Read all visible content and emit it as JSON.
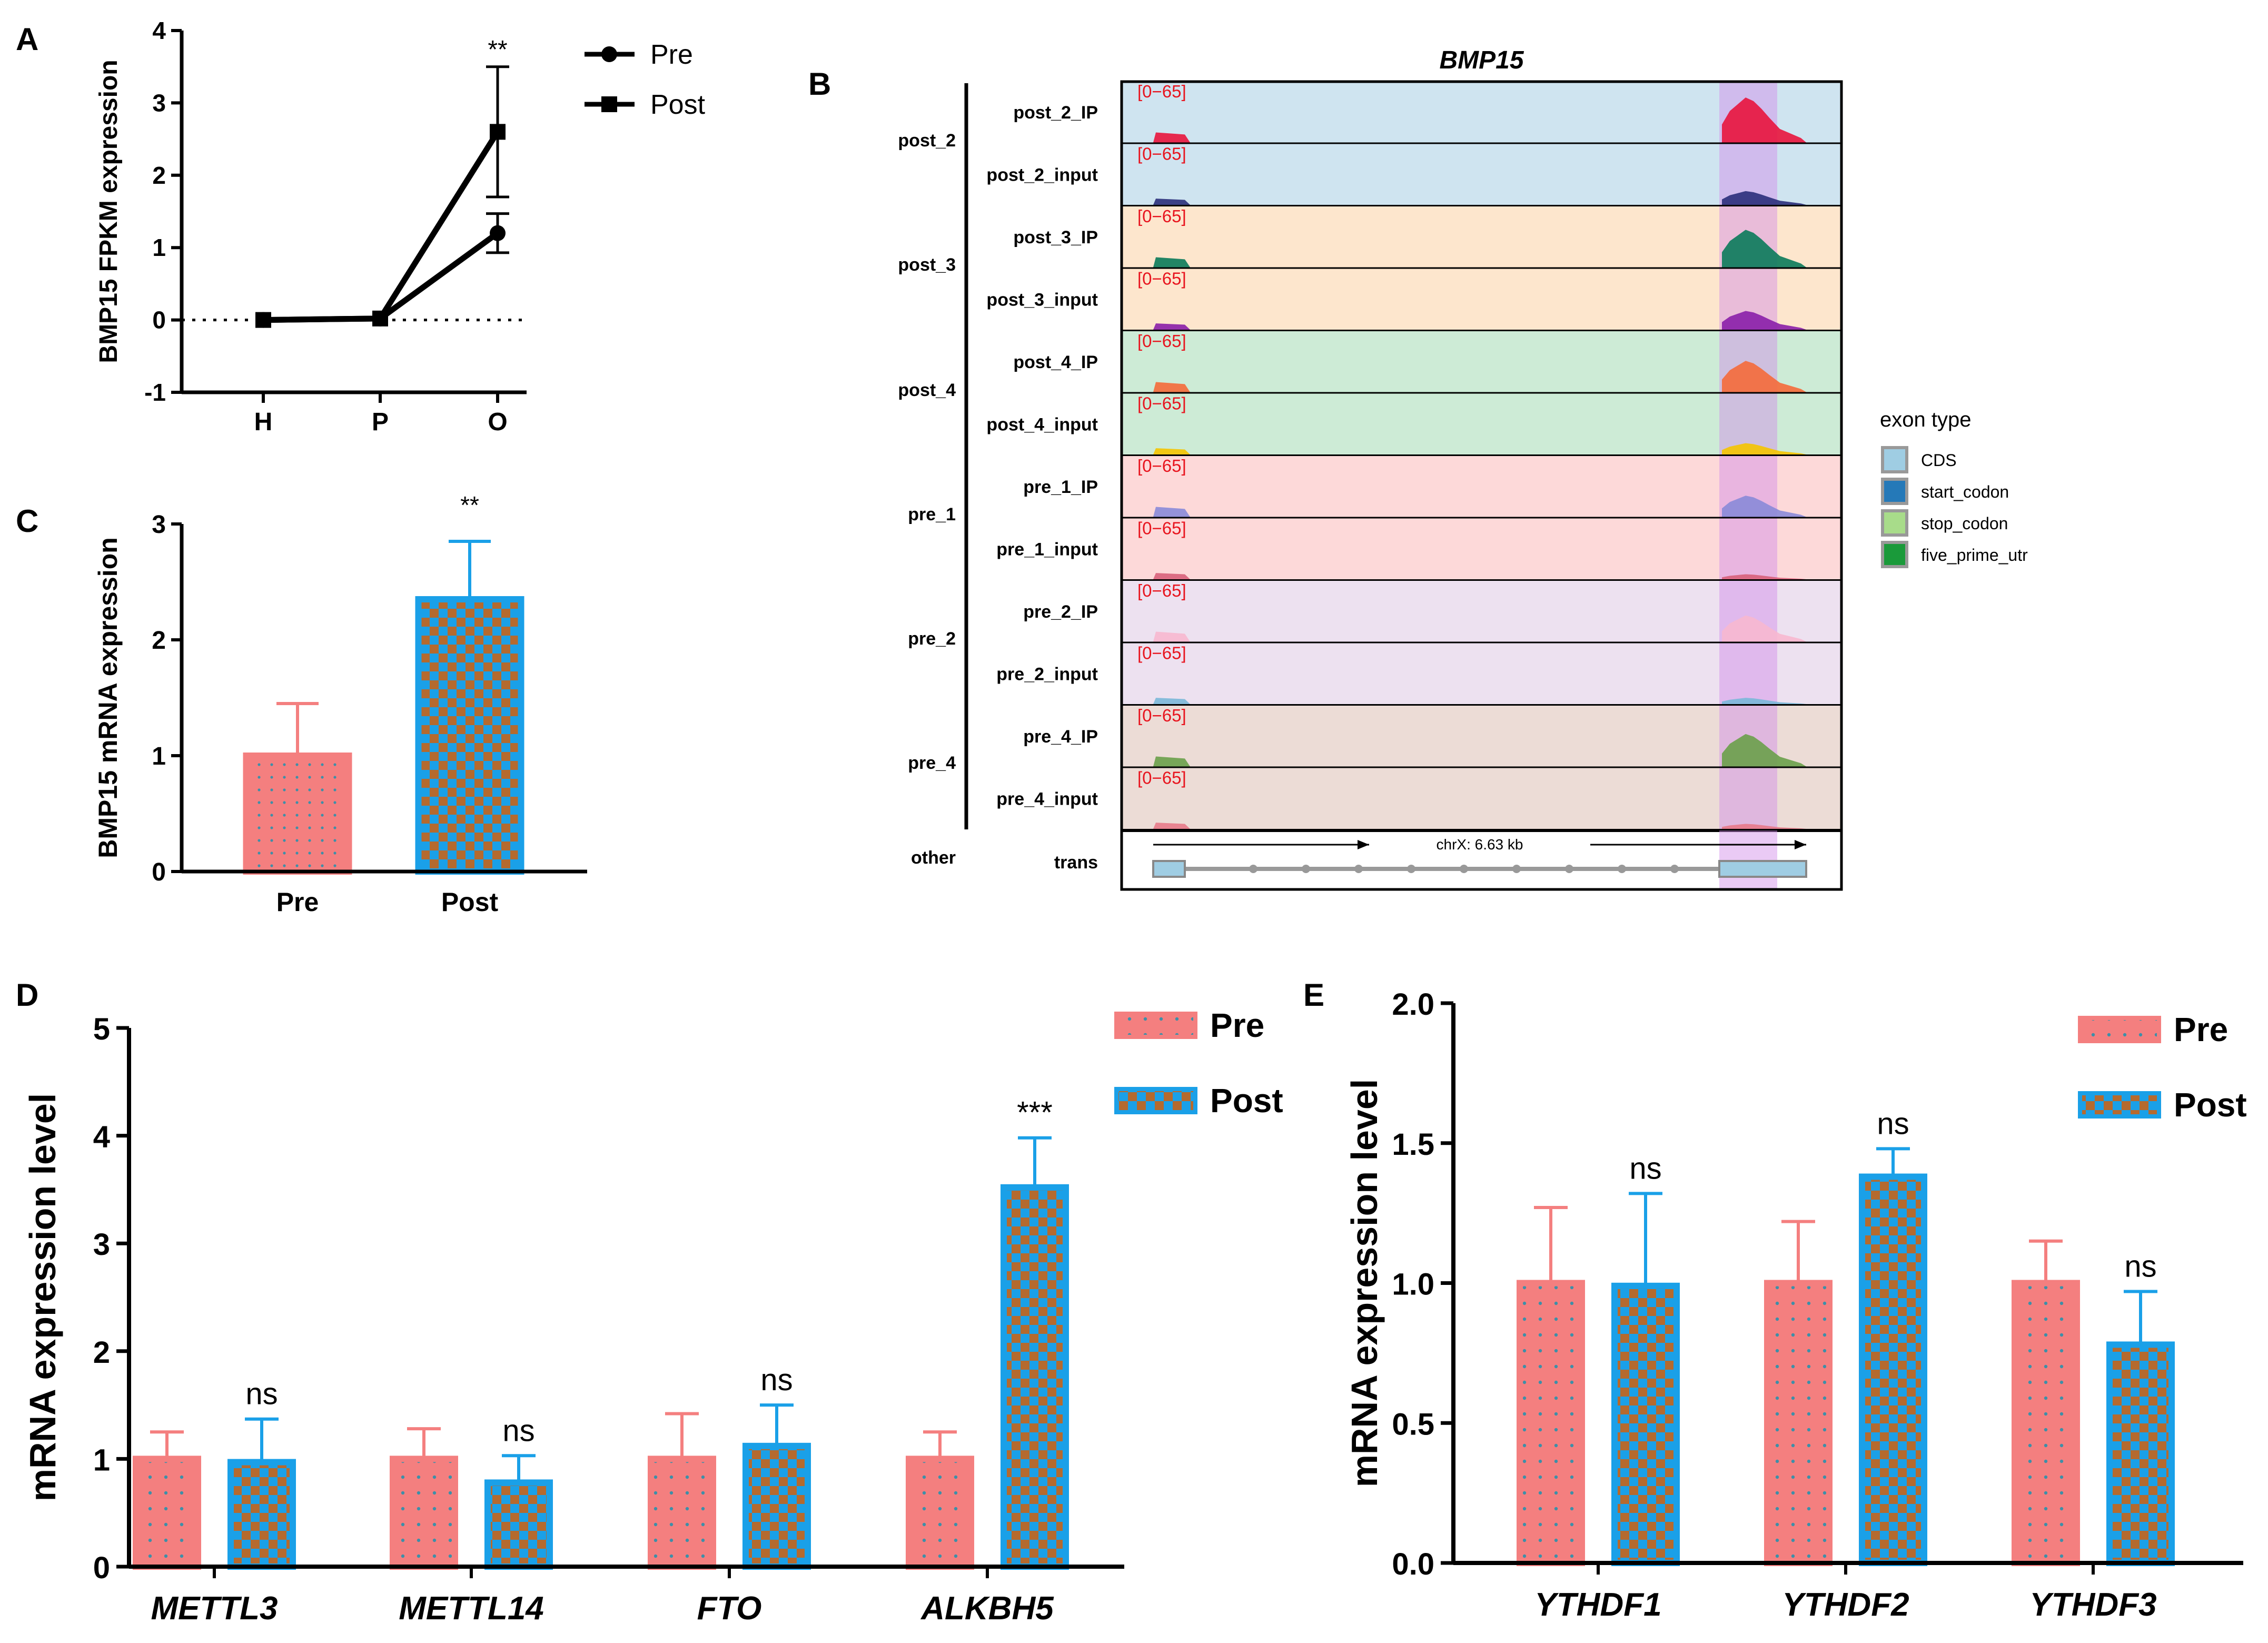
{
  "colors": {
    "pre": "#f47f7f",
    "pre_dot": "#3d8fa8",
    "post": "#1aa0e8",
    "post_check": "#b56a2e",
    "black": "#000000",
    "red_label": "#e8141e"
  },
  "panels": {
    "A": {
      "letter": "A"
    },
    "B": {
      "letter": "B"
    },
    "C": {
      "letter": "C"
    },
    "D": {
      "letter": "D"
    },
    "E": {
      "letter": "E"
    }
  },
  "chart_data": [
    {
      "id": "A",
      "type": "line",
      "title": "",
      "xlabel": "",
      "ylabel": "BMP15 FPKM expression",
      "categories": [
        "H",
        "P",
        "O"
      ],
      "ylim": [
        -1,
        4
      ],
      "yticks": [
        "-1",
        "0",
        "1",
        "2",
        "3",
        "4"
      ],
      "series": [
        {
          "name": "Pre",
          "marker": "circle",
          "values": [
            0,
            0.02,
            1.2
          ],
          "errors": [
            0,
            0,
            0.27
          ]
        },
        {
          "name": "Post",
          "marker": "square",
          "values": [
            0,
            0.02,
            2.6
          ],
          "errors": [
            0,
            0,
            0.9
          ]
        }
      ],
      "annotations": [
        {
          "category": "O",
          "text": "**"
        }
      ],
      "legend": [
        "Pre",
        "Post"
      ]
    },
    {
      "id": "B",
      "type": "track",
      "title": "BMP15",
      "group_labels": [
        "post_2",
        "post_3",
        "post_4",
        "pre_1",
        "pre_2",
        "pre_4",
        "other"
      ],
      "tracks": [
        {
          "label": "post_2_IP",
          "range": "[0−65]",
          "bg": "#cfe4f0",
          "color": "#e8143c"
        },
        {
          "label": "post_2_input",
          "range": "[0−65]",
          "bg": "#cfe4f0",
          "color": "#2a2f7a"
        },
        {
          "label": "post_3_IP",
          "range": "[0−65]",
          "bg": "#fde6cd",
          "color": "#0a7a5a"
        },
        {
          "label": "post_3_input",
          "range": "[0−65]",
          "bg": "#fde6cd",
          "color": "#8a1ea8"
        },
        {
          "label": "post_4_IP",
          "range": "[0−65]",
          "bg": "#cdebd6",
          "color": "#f56a3a"
        },
        {
          "label": "post_4_input",
          "range": "[0−65]",
          "bg": "#cdebd6",
          "color": "#f5c400"
        },
        {
          "label": "pre_1_IP",
          "range": "[0−65]",
          "bg": "#fdd9d9",
          "color": "#8a8ad8"
        },
        {
          "label": "pre_1_input",
          "range": "[0−65]",
          "bg": "#fdd9d9",
          "color": "#d8607a"
        },
        {
          "label": "pre_2_IP",
          "range": "[0−65]",
          "bg": "#ede1f0",
          "color": "#f7b8cf"
        },
        {
          "label": "pre_2_input",
          "range": "[0−65]",
          "bg": "#ede1f0",
          "color": "#7ab8d8"
        },
        {
          "label": "pre_4_IP",
          "range": "[0−65]",
          "bg": "#ecdcd6",
          "color": "#6aa04a"
        },
        {
          "label": "pre_4_input",
          "range": "[0−65]",
          "bg": "#ecdcd6",
          "color": "#e87a8a"
        }
      ],
      "trans_label": "trans",
      "coordinate_label": "chrX: 6.63 kb",
      "legend_title": "exon type",
      "legend": [
        {
          "label": "CDS",
          "color": "#9fcde3"
        },
        {
          "label": "start_codon",
          "color": "#2579b8"
        },
        {
          "label": "stop_codon",
          "color": "#a8dc8a"
        },
        {
          "label": "five_prime_utr",
          "color": "#1a9a3a"
        }
      ]
    },
    {
      "id": "C",
      "type": "bar",
      "title": "",
      "xlabel": "",
      "ylabel": "BMP15 mRNA expression",
      "categories": [
        "Pre",
        "Post"
      ],
      "values": [
        1.0,
        2.35
      ],
      "errors": [
        0.45,
        0.5
      ],
      "ylim": [
        0,
        3
      ],
      "yticks": [
        "0",
        "1",
        "2",
        "3"
      ],
      "annotations": [
        {
          "category": "Post",
          "text": "**"
        }
      ]
    },
    {
      "id": "D",
      "type": "bar",
      "title": "",
      "xlabel": "",
      "ylabel": "mRNA expression level",
      "categories": [
        "METTL3",
        "METTL14",
        "FTO",
        "ALKBH5"
      ],
      "ylim": [
        0,
        5
      ],
      "yticks": [
        "0",
        "1",
        "2",
        "3",
        "4",
        "5"
      ],
      "series": [
        {
          "name": "Pre",
          "values": [
            1.0,
            1.0,
            1.0,
            1.0
          ],
          "errors": [
            0.25,
            0.28,
            0.42,
            0.25
          ]
        },
        {
          "name": "Post",
          "values": [
            0.97,
            0.78,
            1.12,
            3.52
          ],
          "errors": [
            0.4,
            0.25,
            0.38,
            0.46
          ]
        }
      ],
      "significance": [
        "ns",
        "ns",
        "ns",
        "***"
      ],
      "legend": [
        "Pre",
        "Post"
      ]
    },
    {
      "id": "E",
      "type": "bar",
      "title": "",
      "xlabel": "",
      "ylabel": "mRNA expression level",
      "categories": [
        "YTHDF1",
        "YTHDF2",
        "YTHDF3"
      ],
      "ylim": [
        0,
        2
      ],
      "yticks": [
        "0.0",
        "0.5",
        "1.0",
        "1.5",
        "2.0"
      ],
      "series": [
        {
          "name": "Pre",
          "values": [
            1.0,
            1.0,
            1.0
          ],
          "errors": [
            0.27,
            0.22,
            0.15
          ]
        },
        {
          "name": "Post",
          "values": [
            0.99,
            1.38,
            0.78
          ],
          "errors": [
            0.33,
            0.1,
            0.19
          ]
        }
      ],
      "significance": [
        "ns",
        "ns",
        "ns"
      ],
      "legend": [
        "Pre",
        "Post"
      ]
    }
  ]
}
